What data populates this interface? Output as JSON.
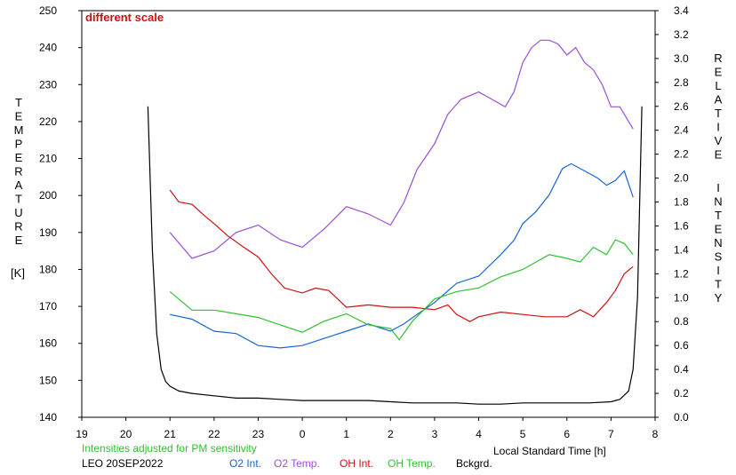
{
  "chart_data": {
    "type": "line",
    "annotation": "different scale",
    "ylabel_left": "TEMPERATURE",
    "ylabel_left_unit": "[K]",
    "ylabel_right": "RELATIVE INTENSITY",
    "xlabel": "Local Standard Time [h]",
    "note": "Intensities adjusted for PM sensitivity",
    "site_date": "LEO 20SEP2022",
    "x_ticks": [
      "19",
      "20",
      "21",
      "22",
      "23",
      "0",
      "1",
      "2",
      "3",
      "4",
      "5",
      "6",
      "7",
      "8"
    ],
    "x_range_hours": [
      19,
      32
    ],
    "y_left_ticks": [
      140,
      150,
      160,
      170,
      180,
      190,
      200,
      210,
      220,
      230,
      240,
      250
    ],
    "ylim_left": [
      140,
      250
    ],
    "y_right_ticks": [
      "0.0",
      "0.2",
      "0.4",
      "0.6",
      "0.8",
      "1.0",
      "1.2",
      "1.4",
      "1.6",
      "1.8",
      "2.0",
      "2.2",
      "2.4",
      "2.6",
      "2.8",
      "3.0",
      "3.2",
      "3.4"
    ],
    "ylim_right": [
      0,
      3.4
    ],
    "grid": false,
    "series": [
      {
        "name": "O2 Int.",
        "axis": "right",
        "color": "#1565d8",
        "x": [
          21.0,
          21.5,
          22.0,
          22.5,
          23.0,
          23.5,
          24.0,
          24.5,
          25.0,
          25.5,
          26.0,
          26.3,
          26.6,
          27.0,
          27.5,
          28.0,
          28.5,
          28.8,
          29.0,
          29.3,
          29.6,
          29.9,
          30.1,
          30.4,
          30.7,
          30.9,
          31.1,
          31.3,
          31.5
        ],
        "y": [
          0.86,
          0.82,
          0.72,
          0.7,
          0.6,
          0.58,
          0.6,
          0.66,
          0.72,
          0.78,
          0.72,
          0.78,
          0.86,
          0.96,
          1.12,
          1.18,
          1.36,
          1.48,
          1.62,
          1.72,
          1.86,
          2.08,
          2.12,
          2.06,
          2.0,
          1.94,
          1.98,
          2.06,
          1.84
        ]
      },
      {
        "name": "O2 Temp.",
        "axis": "left",
        "color": "#9b4fd6",
        "x": [
          21.0,
          21.5,
          22.0,
          22.5,
          23.0,
          23.5,
          24.0,
          24.5,
          25.0,
          25.5,
          26.0,
          26.3,
          26.6,
          27.0,
          27.3,
          27.6,
          28.0,
          28.3,
          28.6,
          28.8,
          29.0,
          29.2,
          29.4,
          29.6,
          29.8,
          30.0,
          30.2,
          30.4,
          30.6,
          30.8,
          31.0,
          31.2,
          31.5
        ],
        "y": [
          190,
          183,
          185,
          190,
          192,
          188,
          186,
          191,
          197,
          195,
          192,
          198,
          207,
          214,
          222,
          226,
          228,
          226,
          224,
          228,
          236,
          240,
          242,
          242,
          241,
          238,
          240,
          236,
          234,
          230,
          224,
          224,
          218
        ]
      },
      {
        "name": "OH Int.",
        "axis": "right",
        "color": "#d01010",
        "x": [
          21.0,
          21.2,
          21.5,
          21.8,
          22.0,
          22.3,
          22.6,
          23.0,
          23.3,
          23.6,
          24.0,
          24.3,
          24.6,
          25.0,
          25.5,
          26.0,
          26.5,
          27.0,
          27.3,
          27.5,
          27.8,
          28.0,
          28.5,
          29.0,
          29.5,
          30.0,
          30.3,
          30.6,
          30.9,
          31.1,
          31.3,
          31.5
        ],
        "y": [
          1.9,
          1.8,
          1.78,
          1.68,
          1.62,
          1.52,
          1.44,
          1.34,
          1.2,
          1.08,
          1.04,
          1.08,
          1.06,
          0.92,
          0.94,
          0.92,
          0.92,
          0.9,
          0.94,
          0.86,
          0.8,
          0.84,
          0.88,
          0.86,
          0.84,
          0.84,
          0.9,
          0.84,
          0.96,
          1.06,
          1.2,
          1.26
        ]
      },
      {
        "name": "OH Temp.",
        "axis": "left",
        "color": "#2fc22f",
        "x": [
          21.0,
          21.5,
          22.0,
          22.5,
          23.0,
          23.5,
          24.0,
          24.5,
          25.0,
          25.5,
          26.0,
          26.2,
          26.5,
          27.0,
          27.5,
          28.0,
          28.5,
          29.0,
          29.3,
          29.6,
          30.0,
          30.3,
          30.6,
          30.9,
          31.1,
          31.3,
          31.5
        ],
        "y": [
          174,
          169,
          169,
          168,
          167,
          165,
          163,
          166,
          168,
          165,
          164,
          161,
          166,
          172,
          174,
          175,
          178,
          180,
          182,
          184,
          183,
          182,
          186,
          184,
          188,
          187,
          184
        ]
      },
      {
        "name": "Bckgrd.",
        "axis": "right",
        "color": "#000000",
        "x": [
          20.5,
          20.6,
          20.7,
          20.8,
          20.9,
          21.0,
          21.2,
          21.5,
          22.0,
          22.5,
          23.0,
          23.5,
          24.0,
          24.5,
          25.0,
          25.5,
          26.0,
          26.5,
          27.0,
          27.5,
          28.0,
          28.5,
          29.0,
          29.5,
          30.0,
          30.5,
          31.0,
          31.2,
          31.4,
          31.5,
          31.6,
          31.7
        ],
        "y": [
          2.6,
          1.4,
          0.7,
          0.4,
          0.3,
          0.26,
          0.22,
          0.2,
          0.18,
          0.16,
          0.16,
          0.15,
          0.14,
          0.14,
          0.14,
          0.14,
          0.13,
          0.12,
          0.12,
          0.12,
          0.11,
          0.11,
          0.12,
          0.12,
          0.12,
          0.12,
          0.13,
          0.15,
          0.22,
          0.4,
          1.0,
          2.6
        ]
      }
    ]
  }
}
